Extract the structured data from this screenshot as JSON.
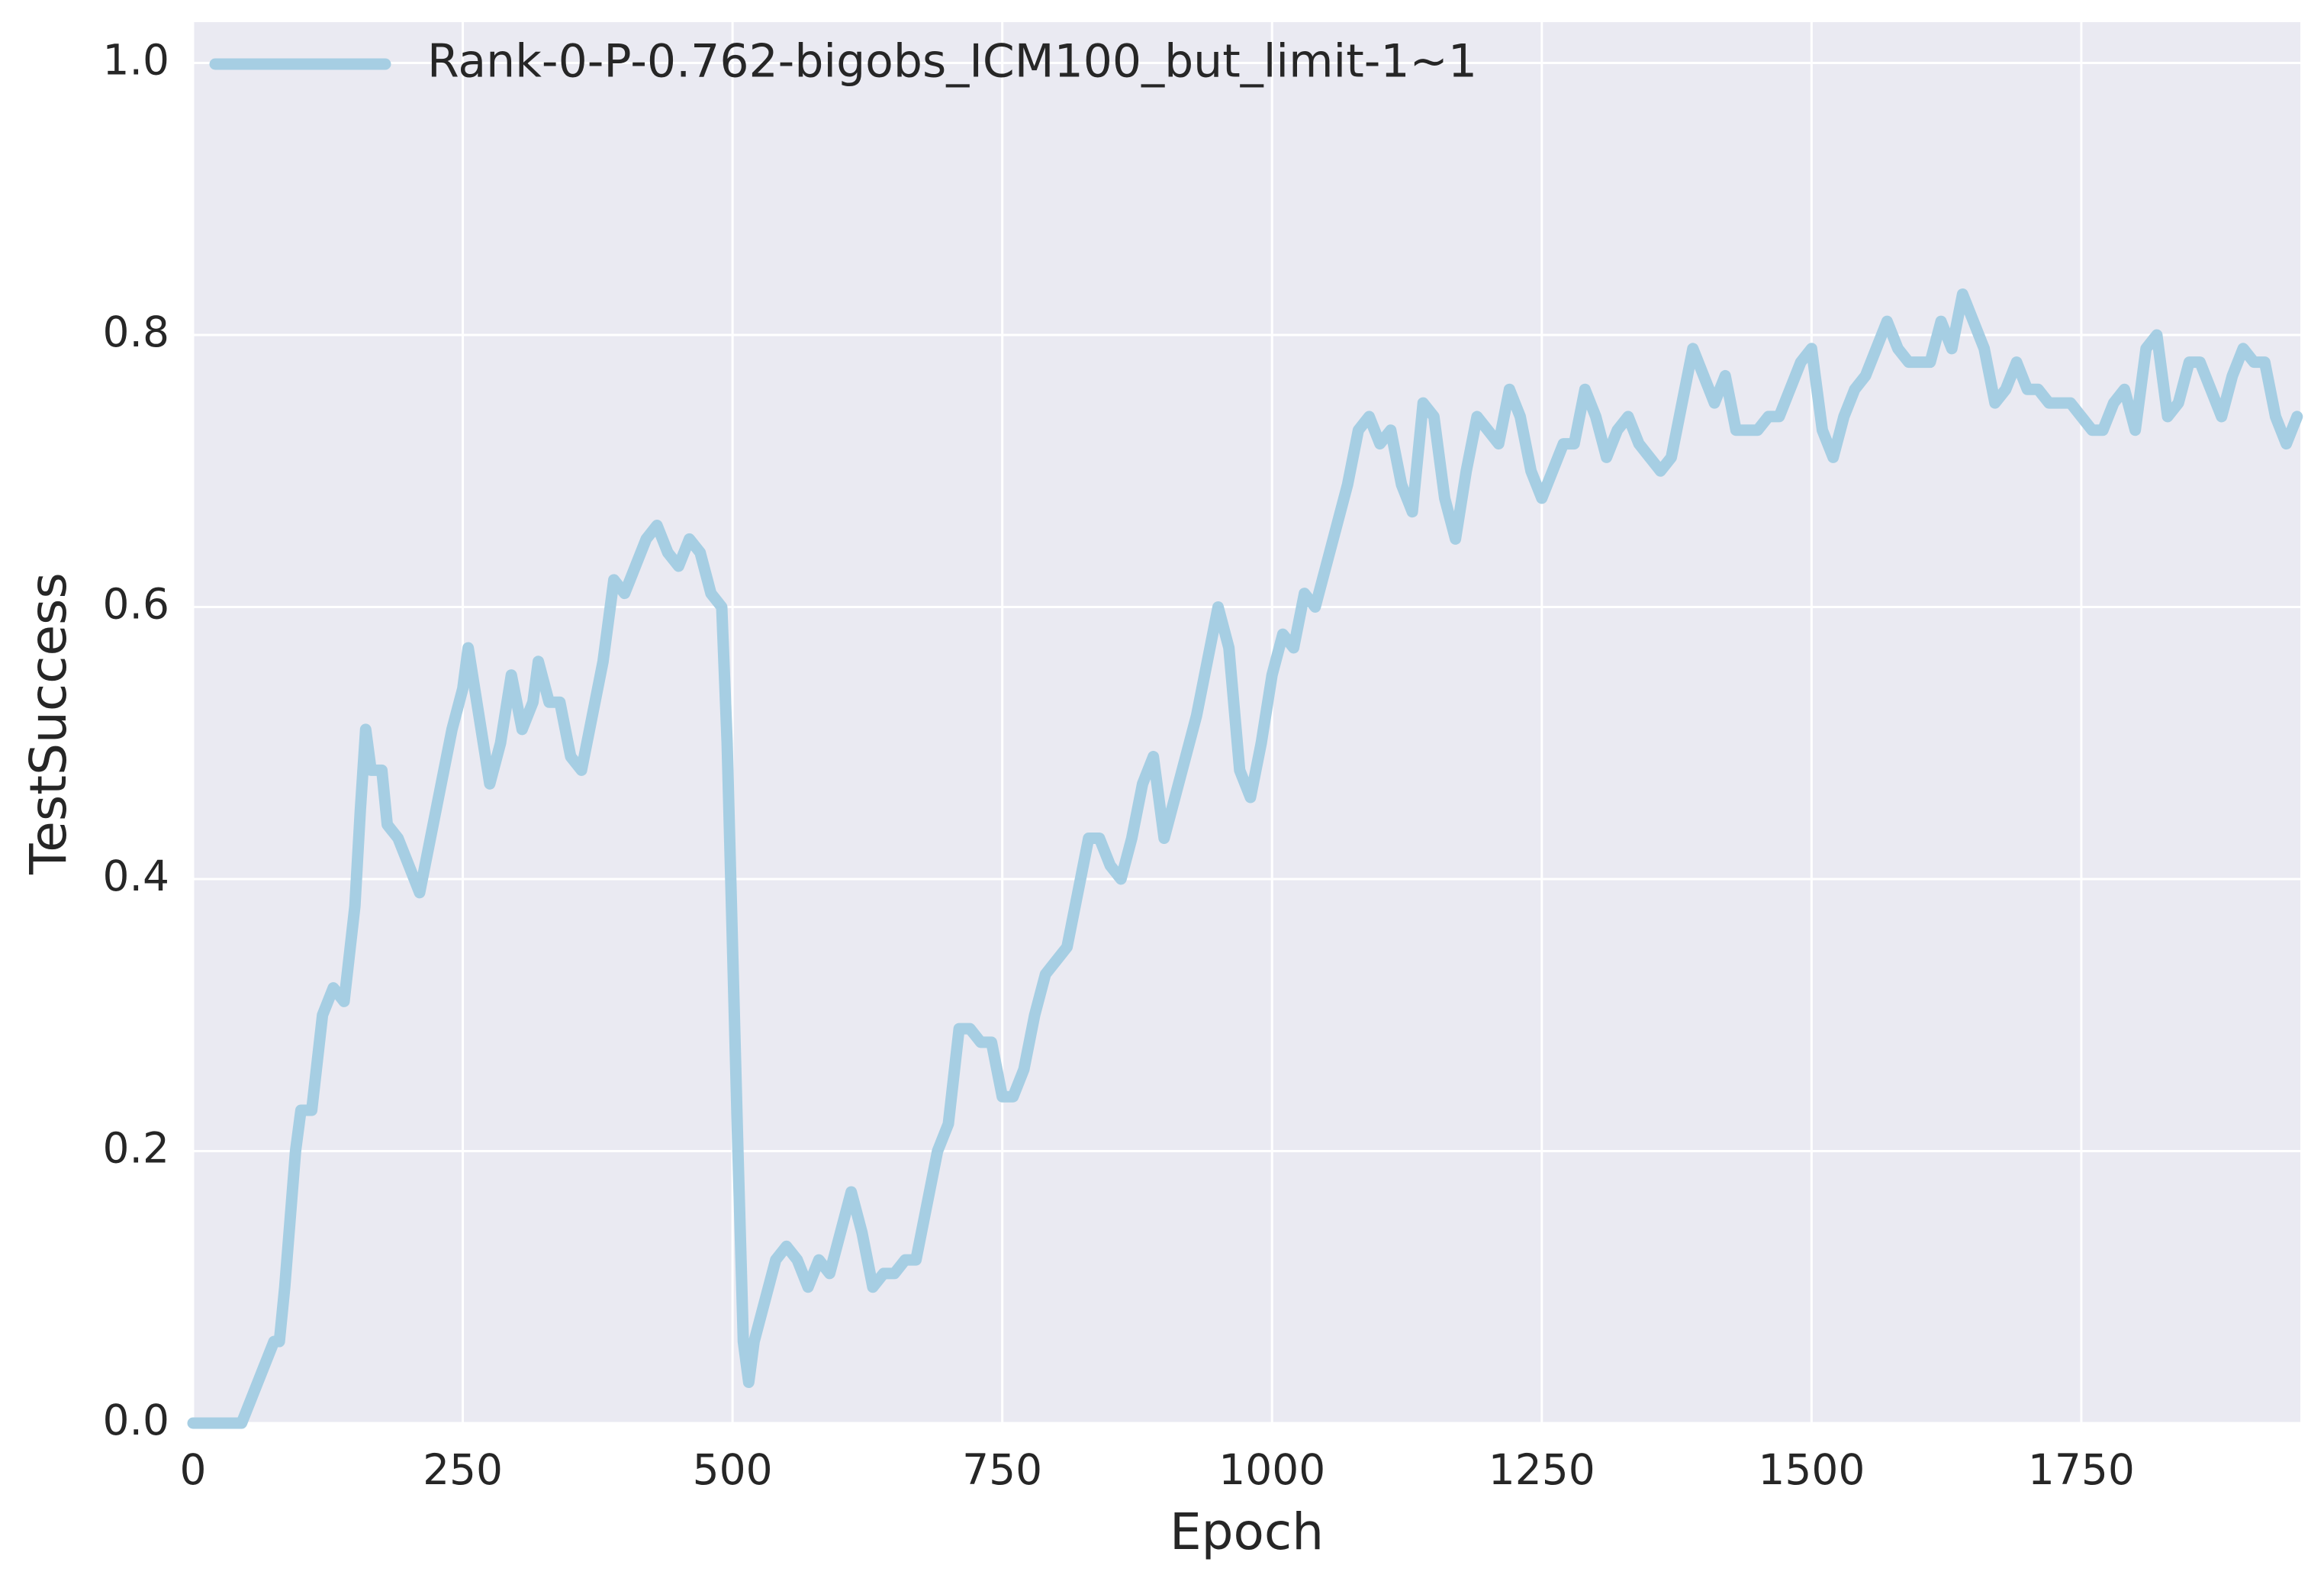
{
  "chart_data": {
    "type": "line",
    "x_label": "Epoch",
    "y_label": "TestSuccess",
    "xlim": [
      0,
      1953
    ],
    "ylim": [
      0,
      1.03
    ],
    "xticks": [
      0,
      250,
      500,
      750,
      1000,
      1250,
      1500,
      1750
    ],
    "yticks": [
      {
        "value": 0,
        "label": "0.0"
      },
      0.2,
      0.4,
      0.6,
      0.8,
      {
        "value": 1,
        "label": "1.0"
      }
    ],
    "grid": true,
    "legend": "upper left",
    "x": [
      0,
      20,
      45,
      55,
      65,
      75,
      80,
      85,
      90,
      95,
      100,
      110,
      120,
      130,
      140,
      150,
      155,
      160,
      165,
      175,
      180,
      190,
      200,
      210,
      220,
      230,
      240,
      250,
      255,
      265,
      275,
      285,
      295,
      305,
      315,
      320,
      330,
      340,
      350,
      360,
      370,
      380,
      390,
      400,
      410,
      420,
      430,
      440,
      450,
      460,
      470,
      480,
      490,
      495,
      500,
      505,
      510,
      515,
      520,
      530,
      540,
      550,
      560,
      570,
      580,
      590,
      600,
      610,
      620,
      630,
      640,
      650,
      660,
      670,
      680,
      690,
      700,
      710,
      720,
      730,
      740,
      750,
      760,
      770,
      780,
      790,
      800,
      810,
      820,
      830,
      840,
      850,
      860,
      870,
      880,
      890,
      900,
      910,
      920,
      930,
      940,
      950,
      960,
      970,
      980,
      990,
      1000,
      1010,
      1020,
      1030,
      1040,
      1050,
      1060,
      1070,
      1080,
      1090,
      1100,
      1110,
      1120,
      1130,
      1140,
      1150,
      1160,
      1170,
      1180,
      1190,
      1200,
      1210,
      1220,
      1230,
      1240,
      1250,
      1260,
      1270,
      1280,
      1290,
      1300,
      1310,
      1320,
      1330,
      1340,
      1350,
      1360,
      1370,
      1380,
      1390,
      1400,
      1410,
      1420,
      1430,
      1440,
      1450,
      1460,
      1470,
      1480,
      1490,
      1500,
      1510,
      1520,
      1530,
      1540,
      1550,
      1560,
      1570,
      1580,
      1590,
      1600,
      1610,
      1620,
      1630,
      1640,
      1650,
      1660,
      1670,
      1680,
      1690,
      1700,
      1710,
      1720,
      1730,
      1740,
      1750,
      1760,
      1770,
      1780,
      1790,
      1800,
      1810,
      1820,
      1830,
      1840,
      1850,
      1860,
      1870,
      1880,
      1890,
      1900,
      1910,
      1920,
      1930,
      1940,
      1950
    ],
    "series": [
      {
        "name": "Rank-0-P-0.762-bigobs_ICM100_but_limit-1~1",
        "color": "#a6cee3",
        "values": [
          0,
          0,
          0,
          0.02,
          0.04,
          0.06,
          0.06,
          0.1,
          0.15,
          0.2,
          0.23,
          0.23,
          0.3,
          0.32,
          0.31,
          0.38,
          0.45,
          0.51,
          0.48,
          0.48,
          0.44,
          0.43,
          0.41,
          0.39,
          0.43,
          0.47,
          0.51,
          0.54,
          0.57,
          0.52,
          0.47,
          0.5,
          0.55,
          0.51,
          0.53,
          0.56,
          0.53,
          0.53,
          0.49,
          0.48,
          0.52,
          0.56,
          0.62,
          0.61,
          0.63,
          0.65,
          0.66,
          0.64,
          0.63,
          0.65,
          0.64,
          0.61,
          0.6,
          0.5,
          0.35,
          0.2,
          0.06,
          0.03,
          0.06,
          0.09,
          0.12,
          0.13,
          0.12,
          0.1,
          0.12,
          0.11,
          0.14,
          0.17,
          0.14,
          0.1,
          0.11,
          0.11,
          0.12,
          0.12,
          0.16,
          0.2,
          0.22,
          0.29,
          0.29,
          0.28,
          0.28,
          0.24,
          0.24,
          0.26,
          0.3,
          0.33,
          0.34,
          0.35,
          0.39,
          0.43,
          0.43,
          0.41,
          0.4,
          0.43,
          0.47,
          0.49,
          0.43,
          0.46,
          0.49,
          0.52,
          0.56,
          0.6,
          0.57,
          0.48,
          0.46,
          0.5,
          0.55,
          0.58,
          0.57,
          0.61,
          0.6,
          0.63,
          0.66,
          0.69,
          0.73,
          0.74,
          0.72,
          0.73,
          0.69,
          0.67,
          0.75,
          0.74,
          0.68,
          0.65,
          0.7,
          0.74,
          0.73,
          0.72,
          0.76,
          0.74,
          0.7,
          0.68,
          0.7,
          0.72,
          0.72,
          0.76,
          0.74,
          0.71,
          0.73,
          0.74,
          0.72,
          0.71,
          0.7,
          0.71,
          0.75,
          0.79,
          0.77,
          0.75,
          0.77,
          0.73,
          0.73,
          0.73,
          0.74,
          0.74,
          0.76,
          0.78,
          0.79,
          0.73,
          0.71,
          0.74,
          0.76,
          0.77,
          0.79,
          0.81,
          0.79,
          0.78,
          0.78,
          0.78,
          0.81,
          0.79,
          0.83,
          0.81,
          0.79,
          0.75,
          0.76,
          0.78,
          0.76,
          0.76,
          0.75,
          0.75,
          0.75,
          0.74,
          0.73,
          0.73,
          0.75,
          0.76,
          0.73,
          0.79,
          0.8,
          0.74,
          0.75,
          0.78,
          0.78,
          0.76,
          0.74,
          0.77,
          0.79,
          0.78,
          0.78,
          0.74,
          0.72,
          0.74
        ]
      }
    ]
  }
}
